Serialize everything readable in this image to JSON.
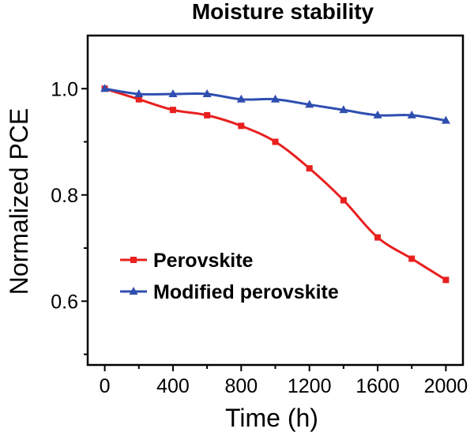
{
  "chart_data": {
    "type": "line",
    "title": "Moisture stability",
    "xlabel": "Time (h)",
    "ylabel": "Normalized PCE",
    "xlim": [
      -100,
      2100
    ],
    "ylim": [
      0.48,
      1.1
    ],
    "xticks": [
      0,
      400,
      800,
      1200,
      1600,
      2000
    ],
    "xminor": [
      200,
      600,
      1000,
      1400,
      1800
    ],
    "yticks": [
      0.6,
      0.8,
      1.0
    ],
    "ytick_labels": [
      "0.6",
      "0.8",
      "1.0"
    ],
    "yminor": [
      0.5,
      0.7,
      0.9
    ],
    "grid": false,
    "legend_position": "lower-left",
    "series": [
      {
        "name": "Perovskite",
        "color": "#e8201e",
        "marker": "square",
        "x": [
          0,
          200,
          400,
          600,
          800,
          1000,
          1200,
          1400,
          1600,
          1800,
          2000
        ],
        "y": [
          1.0,
          0.98,
          0.96,
          0.95,
          0.93,
          0.9,
          0.85,
          0.79,
          0.72,
          0.68,
          0.64
        ]
      },
      {
        "name": "Modified perovskite",
        "color": "#2f4eb0",
        "marker": "triangle",
        "x": [
          0,
          200,
          400,
          600,
          800,
          1000,
          1200,
          1400,
          1600,
          1800,
          2000
        ],
        "y": [
          1.0,
          0.99,
          0.99,
          0.99,
          0.98,
          0.98,
          0.97,
          0.96,
          0.95,
          0.95,
          0.94
        ]
      }
    ]
  }
}
